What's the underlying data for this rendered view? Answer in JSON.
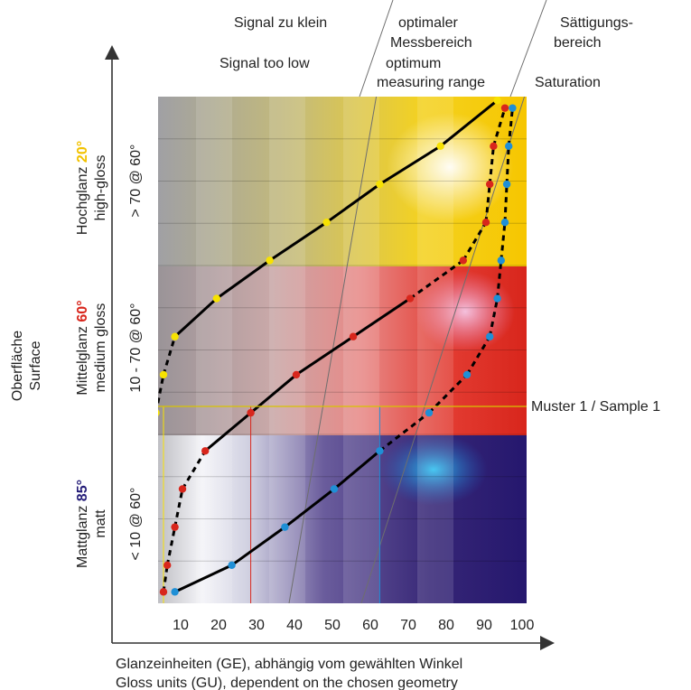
{
  "zones": {
    "low": {
      "de": "Signal zu klein",
      "en": "Signal too low"
    },
    "optimum": {
      "de_line1": "optimaler",
      "de_line2": "Messbereich",
      "en_line1": "optimum",
      "en_line2": "measuring range"
    },
    "saturation": {
      "de_line1": "Sättigungs-",
      "de_line2": "bereich",
      "en": "Saturation"
    }
  },
  "y_axis": {
    "de": "Oberfläche",
    "en": "Surface"
  },
  "bands": {
    "high": {
      "de": "Hochglanz ",
      "angle": "20°",
      "en": "high-gloss",
      "range": "> 70 @ 60°",
      "angle_color": "#f2c200"
    },
    "medium": {
      "de": "Mittelglanz ",
      "angle": "60°",
      "en": "medium gloss",
      "range": "10 - 70 @ 60°",
      "angle_color": "#d8261c"
    },
    "matt": {
      "de": "Mattglanz ",
      "angle": "85°",
      "en": "matt",
      "range": "< 10 @ 60°",
      "angle_color": "#241c78"
    }
  },
  "x_axis": {
    "ticks": [
      "10",
      "20",
      "30",
      "40",
      "50",
      "60",
      "70",
      "80",
      "90",
      "100"
    ],
    "label_de": "Glanzeinheiten (GE), abhängig vom gewählten Winkel",
    "label_en": "Gloss units (GU), dependent on the chosen geometry"
  },
  "sample": {
    "label": "Muster 1 / Sample 1",
    "value_20": 5,
    "value_60": 28,
    "value_85": 62
  },
  "colors": {
    "gloss20": "#f7e200",
    "gloss60": "#d8261c",
    "gloss85": "#1f8fd6",
    "high_band": "#f5c400",
    "medium_band": "#d8261c",
    "matt_band": "#25176e"
  },
  "series": {
    "gloss20": [
      [
        0,
        0.03
      ],
      [
        0,
        0.1
      ],
      [
        0.5,
        0.2
      ],
      [
        1,
        0.3
      ],
      [
        2,
        0.4
      ],
      [
        3,
        0.5
      ],
      [
        5,
        0.6
      ],
      [
        8,
        0.7
      ],
      [
        19,
        0.8
      ],
      [
        33,
        0.9
      ],
      [
        48,
        1.0
      ],
      [
        62,
        1.1
      ],
      [
        78,
        1.2
      ],
      [
        93,
        1.32
      ]
    ],
    "gloss60": [
      [
        5,
        0.03
      ],
      [
        6,
        0.1
      ],
      [
        8,
        0.2
      ],
      [
        10,
        0.3
      ],
      [
        16,
        0.4
      ],
      [
        28,
        0.5
      ],
      [
        40,
        0.6
      ],
      [
        55,
        0.7
      ],
      [
        70,
        0.8
      ],
      [
        84,
        0.9
      ],
      [
        90,
        1.0
      ],
      [
        91,
        1.1
      ],
      [
        92,
        1.2
      ],
      [
        95,
        1.3
      ]
    ],
    "gloss85": [
      [
        8,
        0.03
      ],
      [
        23,
        0.1
      ],
      [
        37,
        0.2
      ],
      [
        50,
        0.3
      ],
      [
        62,
        0.4
      ],
      [
        75,
        0.5
      ],
      [
        85,
        0.6
      ],
      [
        91,
        0.7
      ],
      [
        93,
        0.8
      ],
      [
        94,
        0.9
      ],
      [
        95,
        1.0
      ],
      [
        95.5,
        1.1
      ],
      [
        96,
        1.2
      ],
      [
        97,
        1.3
      ]
    ]
  }
}
